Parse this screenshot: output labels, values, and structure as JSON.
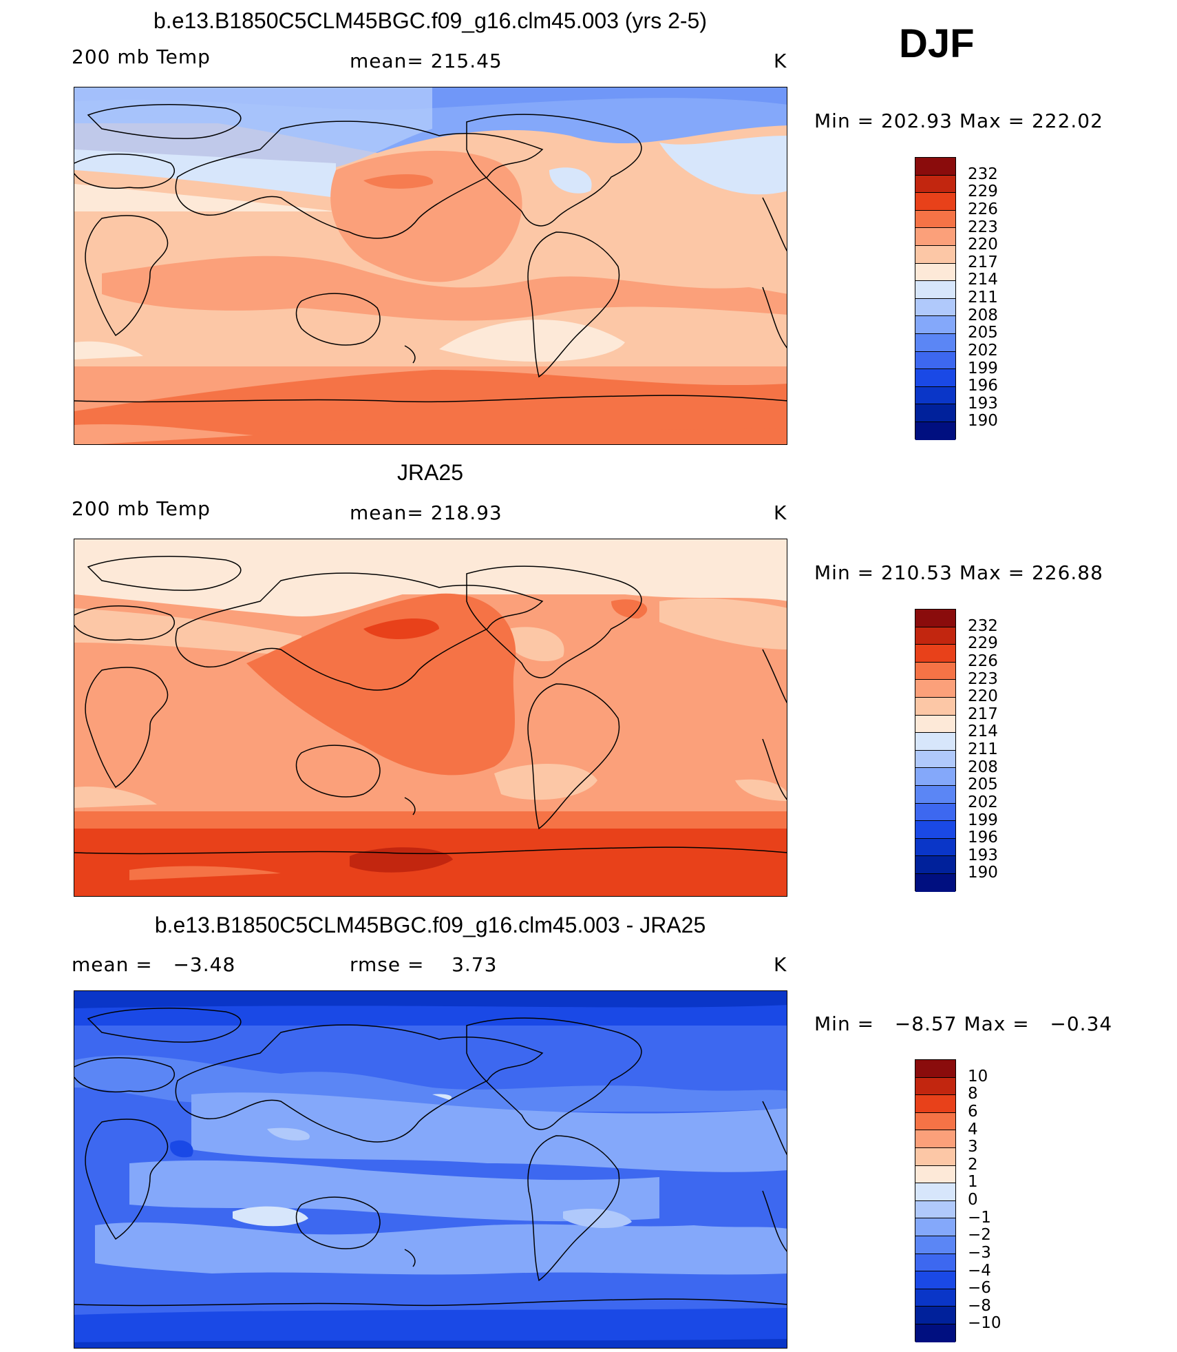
{
  "season": "DJF",
  "colors": {
    "scale": [
      "#000f80",
      "#00219b",
      "#0a36c8",
      "#1a49e6",
      "#3d68f0",
      "#5b86f5",
      "#84a8fa",
      "#b0c9fb",
      "#d7e6fb",
      "#fde9d8",
      "#fcc7a6",
      "#fba07a",
      "#f57346",
      "#e8411a",
      "#c2260f",
      "#8a0c0c"
    ]
  },
  "panels": [
    {
      "title": "b.e13.B1850C5CLM45BGC.f09_g16.clm45.003 (yrs 2-5)",
      "left_label": "200 mb Temp",
      "center_label": "mean= 215.45",
      "units": "K",
      "minmax": "Min = 202.93 Max = 222.02",
      "colorbar_ticks": [
        "232",
        "229",
        "226",
        "223",
        "220",
        "217",
        "214",
        "211",
        "208",
        "205",
        "202",
        "199",
        "196",
        "193",
        "190"
      ]
    },
    {
      "title": "JRA25",
      "left_label": "200 mb Temp",
      "center_label": "mean= 218.93",
      "units": "K",
      "minmax": "Min = 210.53 Max = 226.88",
      "colorbar_ticks": [
        "232",
        "229",
        "226",
        "223",
        "220",
        "217",
        "214",
        "211",
        "208",
        "205",
        "202",
        "199",
        "196",
        "193",
        "190"
      ]
    },
    {
      "title": "b.e13.B1850C5CLM45BGC.f09_g16.clm45.003 - JRA25",
      "left_label": "mean =   −3.48",
      "center_label": "rmse =    3.73",
      "units": "K",
      "minmax": "Min =   −8.57 Max =   −0.34",
      "colorbar_ticks": [
        "10",
        "8",
        "6",
        "4",
        "3",
        "2",
        "1",
        "0",
        "−1",
        "−2",
        "−3",
        "−4",
        "−6",
        "−8",
        "−10"
      ]
    }
  ]
}
